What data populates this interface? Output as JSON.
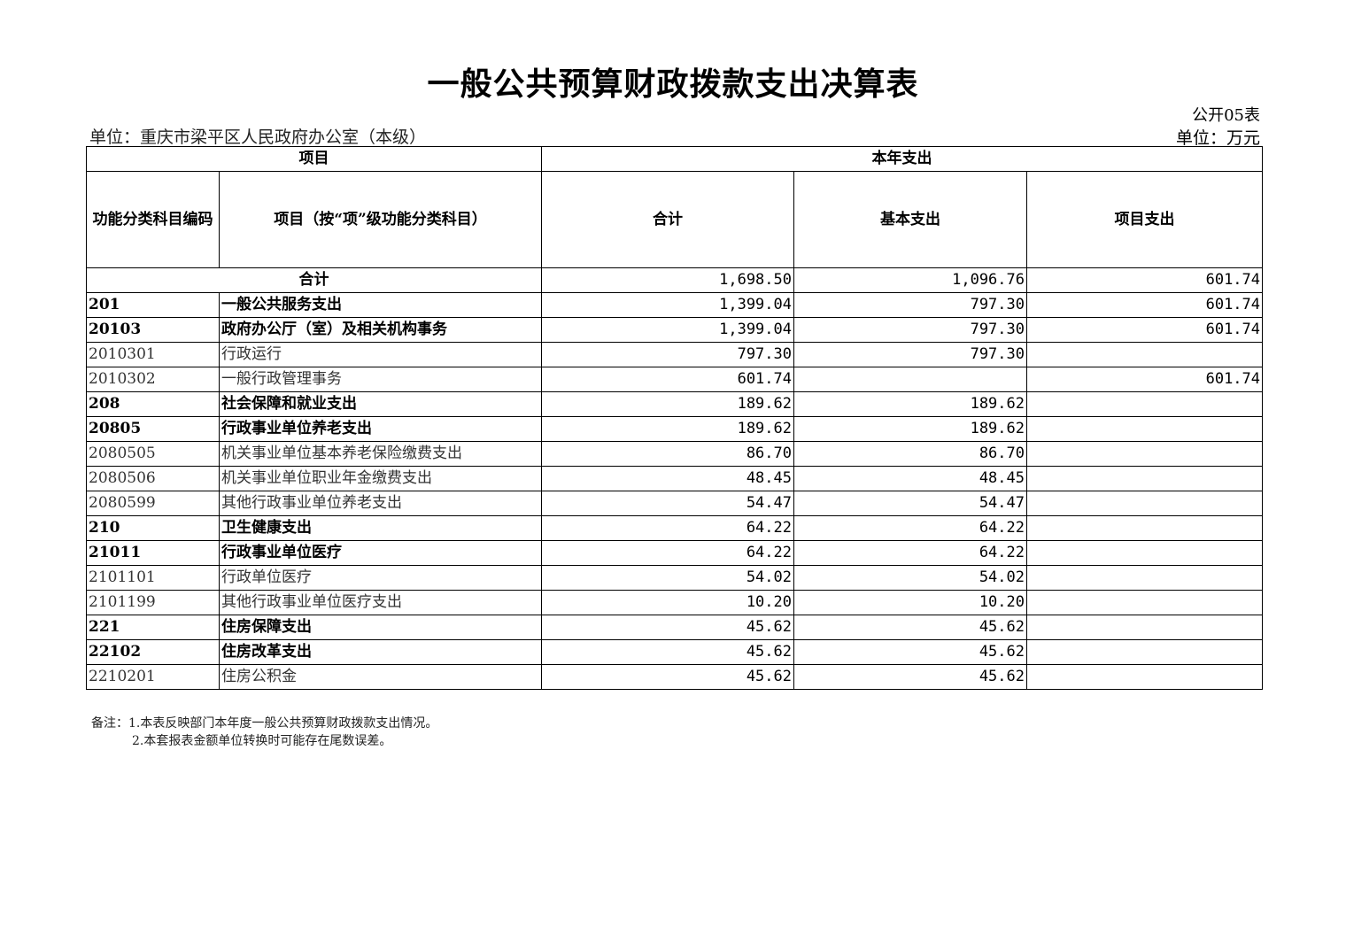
{
  "title": "一般公共预算财政拨款支出决算表",
  "table_no": "公开05表",
  "unit_left": "单位：重庆市梁平区人民政府办公室（本级）",
  "unit_right": "单位：万元",
  "headers": {
    "item": "项目",
    "current_year": "本年支出",
    "code": "功能分类科目编码",
    "name": "项目（按“项”级功能分类科目）",
    "total": "合计",
    "basic": "基本支出",
    "project": "项目支出"
  },
  "total_row": {
    "label": "合计",
    "total": "1,698.50",
    "basic": "1,096.76",
    "project": "601.74"
  },
  "rows": [
    {
      "code": "201",
      "name": "一般公共服务支出",
      "total": "1,399.04",
      "basic": "797.30",
      "project": "601.74",
      "bold": true
    },
    {
      "code": "20103",
      "name": "政府办公厅（室）及相关机构事务",
      "total": "1,399.04",
      "basic": "797.30",
      "project": "601.74",
      "bold": true
    },
    {
      "code": "2010301",
      "name": "行政运行",
      "total": "797.30",
      "basic": "797.30",
      "project": "",
      "bold": false
    },
    {
      "code": "2010302",
      "name": "一般行政管理事务",
      "total": "601.74",
      "basic": "",
      "project": "601.74",
      "bold": false
    },
    {
      "code": "208",
      "name": "社会保障和就业支出",
      "total": "189.62",
      "basic": "189.62",
      "project": "",
      "bold": true
    },
    {
      "code": "20805",
      "name": "行政事业单位养老支出",
      "total": "189.62",
      "basic": "189.62",
      "project": "",
      "bold": true
    },
    {
      "code": "2080505",
      "name": "机关事业单位基本养老保险缴费支出",
      "total": "86.70",
      "basic": "86.70",
      "project": "",
      "bold": false
    },
    {
      "code": "2080506",
      "name": "机关事业单位职业年金缴费支出",
      "total": "48.45",
      "basic": "48.45",
      "project": "",
      "bold": false
    },
    {
      "code": "2080599",
      "name": "其他行政事业单位养老支出",
      "total": "54.47",
      "basic": "54.47",
      "project": "",
      "bold": false
    },
    {
      "code": "210",
      "name": "卫生健康支出",
      "total": "64.22",
      "basic": "64.22",
      "project": "",
      "bold": true
    },
    {
      "code": "21011",
      "name": "行政事业单位医疗",
      "total": "64.22",
      "basic": "64.22",
      "project": "",
      "bold": true
    },
    {
      "code": "2101101",
      "name": "行政单位医疗",
      "total": "54.02",
      "basic": "54.02",
      "project": "",
      "bold": false
    },
    {
      "code": "2101199",
      "name": "其他行政事业单位医疗支出",
      "total": "10.20",
      "basic": "10.20",
      "project": "",
      "bold": false
    },
    {
      "code": "221",
      "name": "住房保障支出",
      "total": "45.62",
      "basic": "45.62",
      "project": "",
      "bold": true
    },
    {
      "code": "22102",
      "name": "住房改革支出",
      "total": "45.62",
      "basic": "45.62",
      "project": "",
      "bold": true
    },
    {
      "code": "2210201",
      "name": "住房公积金",
      "total": "45.62",
      "basic": "45.62",
      "project": "",
      "bold": false
    }
  ],
  "notes": {
    "line1": "备注：1.本表反映部门本年度一般公共预算财政拨款支出情况。",
    "line2": "2.本套报表金额单位转换时可能存在尾数误差。"
  }
}
